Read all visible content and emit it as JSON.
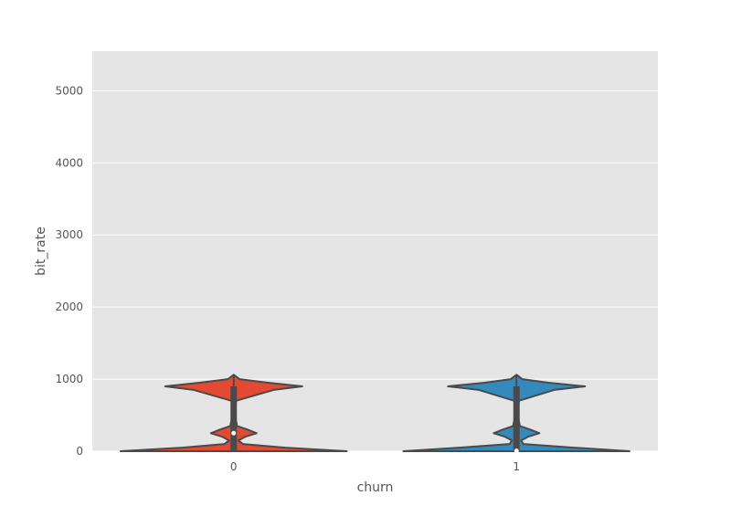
{
  "chart_data": {
    "type": "violin",
    "xlabel": "churn",
    "ylabel": "bit_rate",
    "categories": [
      "0",
      "1"
    ],
    "yticks": [
      0,
      1000,
      2000,
      3000,
      4000,
      5000
    ],
    "ylim": [
      0,
      5550
    ],
    "grid": true,
    "background": "#e5e5e5",
    "colors": [
      "#e24a33",
      "#348abd"
    ],
    "line_color": "#4a4a4a",
    "series": [
      {
        "category": "0",
        "median": 250,
        "q1": 10,
        "q3": 900,
        "whisker_low": 0,
        "whisker_high": 1060,
        "density_profile": [
          [
            0,
            0.99
          ],
          [
            50,
            0.45
          ],
          [
            100,
            0.08
          ],
          [
            150,
            0.04
          ],
          [
            200,
            0.1
          ],
          [
            250,
            0.2
          ],
          [
            300,
            0.12
          ],
          [
            350,
            0.03
          ],
          [
            500,
            0.01
          ],
          [
            700,
            0.02
          ],
          [
            850,
            0.35
          ],
          [
            900,
            0.6
          ],
          [
            950,
            0.3
          ],
          [
            1000,
            0.05
          ],
          [
            1060,
            0.0
          ]
        ]
      },
      {
        "category": "1",
        "median": 5,
        "q1": 5,
        "q3": 900,
        "whisker_low": 0,
        "whisker_high": 1060,
        "density_profile": [
          [
            0,
            0.99
          ],
          [
            50,
            0.5
          ],
          [
            100,
            0.06
          ],
          [
            150,
            0.04
          ],
          [
            200,
            0.1
          ],
          [
            250,
            0.2
          ],
          [
            300,
            0.12
          ],
          [
            350,
            0.03
          ],
          [
            500,
            0.01
          ],
          [
            700,
            0.02
          ],
          [
            850,
            0.33
          ],
          [
            900,
            0.6
          ],
          [
            950,
            0.28
          ],
          [
            1000,
            0.05
          ],
          [
            1060,
            0.0
          ]
        ]
      }
    ]
  }
}
